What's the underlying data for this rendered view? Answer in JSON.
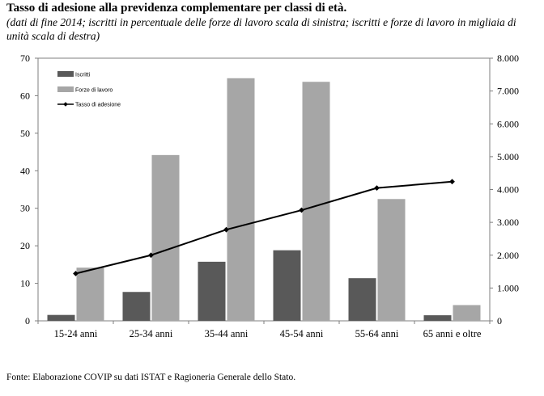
{
  "title": "Tasso di adesione alla previdenza complementare per classi di età.",
  "subtitle": "(dati di fine 2014; iscritti in percentuale delle forze di lavoro scala di sinistra; iscritti e forze di lavoro in migliaia di unità scala di destra)",
  "footer": "Fonte: Elaborazione COVIP su dati ISTAT e Ragioneria Generale dello Stato.",
  "colors": {
    "iscritti": "#595959",
    "forze_di_lavoro": "#a6a6a6",
    "tasso": "#000000",
    "border": "#7f7f7f"
  },
  "chart_data": {
    "type": "bar",
    "title": "Tasso di adesione alla previdenza complementare per classi di età.",
    "categories": [
      "15-24 anni",
      "25-34 anni",
      "35-44 anni",
      "45-54 anni",
      "55-64 anni",
      "65 anni e oltre"
    ],
    "y_left": {
      "ylim": [
        0,
        70
      ],
      "ticks": [
        "0",
        "10",
        "20",
        "30",
        "40",
        "50",
        "60",
        "70"
      ],
      "tick_values": [
        0,
        10,
        20,
        30,
        40,
        50,
        60,
        70
      ]
    },
    "y_right": {
      "ylim": [
        0,
        8000
      ],
      "ticks": [
        "0",
        "1.000",
        "2.000",
        "3.000",
        "4.000",
        "5.000",
        "6.000",
        "7.000",
        "8.000"
      ],
      "tick_values": [
        0,
        1000,
        2000,
        3000,
        4000,
        5000,
        6000,
        7000,
        8000
      ]
    },
    "series": [
      {
        "name": "Iscritti",
        "type": "bar",
        "axis": "right",
        "values": [
          180,
          880,
          1800,
          2150,
          1300,
          170
        ]
      },
      {
        "name": "Forze di lavoro",
        "type": "bar",
        "axis": "right",
        "values": [
          1620,
          5050,
          7390,
          7280,
          3710,
          480
        ]
      },
      {
        "name": "Tasso di adesione",
        "type": "line",
        "axis": "left",
        "values": [
          12.6,
          17.5,
          24.3,
          29.5,
          35.4,
          37.1
        ]
      }
    ],
    "legend_position": "top-left",
    "grid": false
  }
}
